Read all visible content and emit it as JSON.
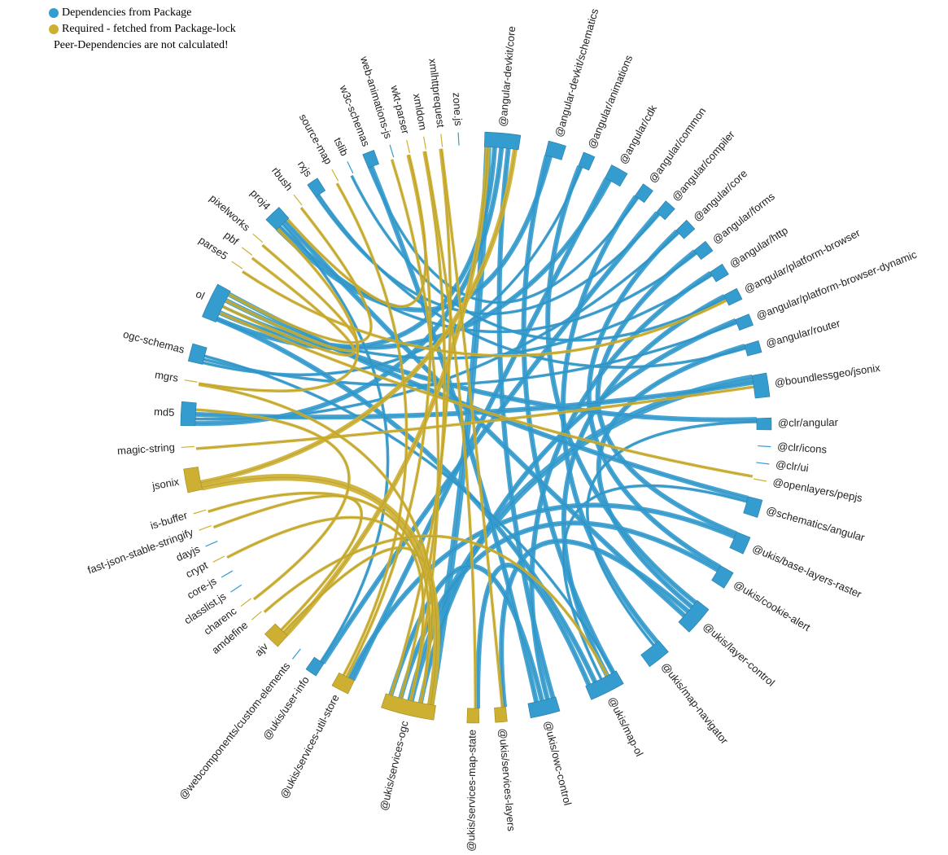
{
  "legend": {
    "items": [
      {
        "label": "Dependencies from Package",
        "color": "#349ccf"
      },
      {
        "label": "Required - fetched from Package-lock",
        "color": "#cdb032"
      }
    ],
    "note": "Peer-Dependencies are not calculated!"
  },
  "colors": {
    "dependency": "#349ccf",
    "required": "#cdb032",
    "dependency_stroke": "#2a7aa3",
    "required_stroke": "#a08a22"
  },
  "nodes": [
    {
      "name": "@angular-devkit/core",
      "kind": "dependency",
      "weight": 6
    },
    {
      "name": "@angular-devkit/schematics",
      "kind": "dependency",
      "weight": 3
    },
    {
      "name": "@angular/animations",
      "kind": "dependency",
      "weight": 2
    },
    {
      "name": "@angular/cdk",
      "kind": "dependency",
      "weight": 3
    },
    {
      "name": "@angular/common",
      "kind": "dependency",
      "weight": 2
    },
    {
      "name": "@angular/compiler",
      "kind": "dependency",
      "weight": 2
    },
    {
      "name": "@angular/core",
      "kind": "dependency",
      "weight": 2
    },
    {
      "name": "@angular/forms",
      "kind": "dependency",
      "weight": 2
    },
    {
      "name": "@angular/http",
      "kind": "dependency",
      "weight": 2
    },
    {
      "name": "@angular/platform-browser",
      "kind": "dependency",
      "weight": 2
    },
    {
      "name": "@angular/platform-browser-dynamic",
      "kind": "dependency",
      "weight": 2
    },
    {
      "name": "@angular/router",
      "kind": "dependency",
      "weight": 2
    },
    {
      "name": "@boundlessgeo/jsonix",
      "kind": "dependency",
      "weight": 4
    },
    {
      "name": "@clr/angular",
      "kind": "dependency",
      "weight": 2
    },
    {
      "name": "@clr/icons",
      "kind": "dependency",
      "weight": 1
    },
    {
      "name": "@clr/ui",
      "kind": "dependency",
      "weight": 1
    },
    {
      "name": "@openlayers/pepjs",
      "kind": "required",
      "weight": 1
    },
    {
      "name": "@schematics/angular",
      "kind": "dependency",
      "weight": 3
    },
    {
      "name": "@ukis/base-layers-raster",
      "kind": "dependency",
      "weight": 3
    },
    {
      "name": "@ukis/cookie-alert",
      "kind": "dependency",
      "weight": 3
    },
    {
      "name": "@ukis/layer-control",
      "kind": "dependency",
      "weight": 5
    },
    {
      "name": "@ukis/map-navigator",
      "kind": "dependency",
      "weight": 4
    },
    {
      "name": "@ukis/map-ol",
      "kind": "dependency",
      "weight": 6
    },
    {
      "name": "@ukis/owc-control",
      "kind": "dependency",
      "weight": 5
    },
    {
      "name": "@ukis/services-layers",
      "kind": "required",
      "weight": 2
    },
    {
      "name": "@ukis/services-map-state",
      "kind": "required",
      "weight": 2
    },
    {
      "name": "@ukis/services-ogc",
      "kind": "required",
      "weight": 9
    },
    {
      "name": "@ukis/services-util-store",
      "kind": "required",
      "weight": 3
    },
    {
      "name": "@ukis/user-info",
      "kind": "dependency",
      "weight": 2
    },
    {
      "name": "@webcomponents/custom-elements",
      "kind": "dependency",
      "weight": 1
    },
    {
      "name": "ajv",
      "kind": "required",
      "weight": 3
    },
    {
      "name": "amdefine",
      "kind": "required",
      "weight": 1
    },
    {
      "name": "charenc",
      "kind": "required",
      "weight": 1
    },
    {
      "name": "classlist.js",
      "kind": "dependency",
      "weight": 1
    },
    {
      "name": "core-js",
      "kind": "dependency",
      "weight": 1
    },
    {
      "name": "crypt",
      "kind": "required",
      "weight": 1
    },
    {
      "name": "dayjs",
      "kind": "dependency",
      "weight": 1
    },
    {
      "name": "fast-json-stable-stringify",
      "kind": "required",
      "weight": 1
    },
    {
      "name": "is-buffer",
      "kind": "required",
      "weight": 1
    },
    {
      "name": "jsonix",
      "kind": "required",
      "weight": 4
    },
    {
      "name": "magic-string",
      "kind": "required",
      "weight": 1
    },
    {
      "name": "md5",
      "kind": "dependency",
      "weight": 4
    },
    {
      "name": "mgrs",
      "kind": "required",
      "weight": 1
    },
    {
      "name": "ogc-schemas",
      "kind": "dependency",
      "weight": 3
    },
    {
      "name": "ol",
      "kind": "dependency",
      "weight": 6
    },
    {
      "name": "parse5",
      "kind": "required",
      "weight": 1
    },
    {
      "name": "pbf",
      "kind": "required",
      "weight": 1
    },
    {
      "name": "pixelworks",
      "kind": "required",
      "weight": 1
    },
    {
      "name": "proj4",
      "kind": "dependency",
      "weight": 3
    },
    {
      "name": "rbush",
      "kind": "required",
      "weight": 1
    },
    {
      "name": "rxjs",
      "kind": "dependency",
      "weight": 2
    },
    {
      "name": "source-map",
      "kind": "required",
      "weight": 1
    },
    {
      "name": "tslib",
      "kind": "dependency",
      "weight": 1
    },
    {
      "name": "w3c-schemas",
      "kind": "dependency",
      "weight": 2
    },
    {
      "name": "web-animations-js",
      "kind": "dependency",
      "weight": 1
    },
    {
      "name": "wkt-parser",
      "kind": "required",
      "weight": 1
    },
    {
      "name": "xmldom",
      "kind": "required",
      "weight": 1
    },
    {
      "name": "xmlhttprequest",
      "kind": "required",
      "weight": 1
    },
    {
      "name": "zone.js",
      "kind": "dependency",
      "weight": 1
    }
  ],
  "links": [
    {
      "source": "@angular-devkit/core",
      "target": "@ukis/services-ogc",
      "kind": "dependency",
      "value": 3
    },
    {
      "source": "@angular-devkit/core",
      "target": "ol",
      "kind": "dependency",
      "value": 2
    },
    {
      "source": "@angular-devkit/core",
      "target": "md5",
      "kind": "dependency",
      "value": 2
    },
    {
      "source": "@angular-devkit/core",
      "target": "@ukis/owc-control",
      "kind": "dependency",
      "value": 2
    },
    {
      "source": "@angular-devkit/schematics",
      "target": "@ukis/map-ol",
      "kind": "dependency",
      "value": 2
    },
    {
      "source": "@angular-devkit/schematics",
      "target": "proj4",
      "kind": "dependency",
      "value": 2
    },
    {
      "source": "@angular/animations",
      "target": "@ukis/layer-control",
      "kind": "dependency",
      "value": 2
    },
    {
      "source": "@angular/animations",
      "target": "ogc-schemas",
      "kind": "dependency",
      "value": 1
    },
    {
      "source": "@angular/cdk",
      "target": "@ukis/services-util-store",
      "kind": "dependency",
      "value": 2
    },
    {
      "source": "@angular/cdk",
      "target": "ol",
      "kind": "dependency",
      "value": 2
    },
    {
      "source": "@angular/common",
      "target": "@ukis/map-navigator",
      "kind": "dependency",
      "value": 2
    },
    {
      "source": "@angular/common",
      "target": "w3c-schemas",
      "kind": "dependency",
      "value": 1
    },
    {
      "source": "@angular/compiler",
      "target": "@ukis/user-info",
      "kind": "dependency",
      "value": 2
    },
    {
      "source": "@angular/compiler",
      "target": "rxjs",
      "kind": "dependency",
      "value": 1
    },
    {
      "source": "@angular/core",
      "target": "@ukis/cookie-alert",
      "kind": "dependency",
      "value": 2
    },
    {
      "source": "@angular/core",
      "target": "md5",
      "kind": "dependency",
      "value": 1
    },
    {
      "source": "@angular/forms",
      "target": "@ukis/base-layers-raster",
      "kind": "dependency",
      "value": 2
    },
    {
      "source": "@angular/forms",
      "target": "proj4",
      "kind": "dependency",
      "value": 1
    },
    {
      "source": "@angular/http",
      "target": "@ukis/owc-control",
      "kind": "dependency",
      "value": 2
    },
    {
      "source": "@angular/http",
      "target": "ol",
      "kind": "dependency",
      "value": 1
    },
    {
      "source": "@angular/platform-browser",
      "target": "@ukis/map-ol",
      "kind": "dependency",
      "value": 2
    },
    {
      "source": "@angular/platform-browser",
      "target": "tslib",
      "kind": "dependency",
      "value": 1
    },
    {
      "source": "@angular/platform-browser-dynamic",
      "target": "@ukis/services-ogc",
      "kind": "dependency",
      "value": 2
    },
    {
      "source": "@angular/platform-browser-dynamic",
      "target": "ogc-schemas",
      "kind": "dependency",
      "value": 1
    },
    {
      "source": "@angular/router",
      "target": "@ukis/layer-control",
      "kind": "dependency",
      "value": 2
    },
    {
      "source": "@angular/router",
      "target": "rxjs",
      "kind": "dependency",
      "value": 1
    },
    {
      "source": "@boundlessgeo/jsonix",
      "target": "@ukis/services-ogc",
      "kind": "dependency",
      "value": 3
    },
    {
      "source": "@boundlessgeo/jsonix",
      "target": "md5",
      "kind": "dependency",
      "value": 2
    },
    {
      "source": "@clr/angular",
      "target": "ol",
      "kind": "dependency",
      "value": 2
    },
    {
      "source": "@clr/angular",
      "target": "@ukis/map-navigator",
      "kind": "dependency",
      "value": 1
    },
    {
      "source": "@schematics/angular",
      "target": "ol",
      "kind": "dependency",
      "value": 2
    },
    {
      "source": "@schematics/angular",
      "target": "@ukis/map-ol",
      "kind": "dependency",
      "value": 1
    },
    {
      "source": "@ukis/base-layers-raster",
      "target": "@ukis/services-util-store",
      "kind": "dependency",
      "value": 2
    },
    {
      "source": "@ukis/cookie-alert",
      "target": "@ukis/services-ogc",
      "kind": "dependency",
      "value": 2
    },
    {
      "source": "@ukis/layer-control",
      "target": "@ukis/services-layers",
      "kind": "dependency",
      "value": 2
    },
    {
      "source": "@ukis/map-ol",
      "target": "ol",
      "kind": "dependency",
      "value": 2
    },
    {
      "source": "@ukis/map-ol",
      "target": "@ukis/services-map-state",
      "kind": "dependency",
      "value": 2
    },
    {
      "source": "@ukis/owc-control",
      "target": "@ukis/services-ogc",
      "kind": "dependency",
      "value": 2
    },
    {
      "source": "@ukis/user-info",
      "target": "proj4",
      "kind": "dependency",
      "value": 1
    },
    {
      "source": "w3c-schemas",
      "target": "@ukis/owc-control",
      "kind": "dependency",
      "value": 2
    },
    {
      "source": "proj4",
      "target": "@ukis/layer-control",
      "kind": "dependency",
      "value": 2
    },
    {
      "source": "ogc-schemas",
      "target": "@ukis/map-ol",
      "kind": "dependency",
      "value": 1
    },
    {
      "source": "jsonix",
      "target": "@ukis/services-ogc",
      "kind": "required",
      "value": 3
    },
    {
      "source": "jsonix",
      "target": "@angular-devkit/core",
      "kind": "required",
      "value": 2
    },
    {
      "source": "ajv",
      "target": "@angular-devkit/core",
      "kind": "required",
      "value": 2
    },
    {
      "source": "ajv",
      "target": "@ukis/services-ogc",
      "kind": "required",
      "value": 1
    },
    {
      "source": "@ukis/services-ogc",
      "target": "web-animations-js",
      "kind": "required",
      "value": 1
    },
    {
      "source": "@ukis/services-ogc",
      "target": "xmldom",
      "kind": "required",
      "value": 1
    },
    {
      "source": "@ukis/services-ogc",
      "target": "xmlhttprequest",
      "kind": "required",
      "value": 1
    },
    {
      "source": "@ukis/services-util-store",
      "target": "wkt-parser",
      "kind": "required",
      "value": 1
    },
    {
      "source": "@ukis/services-util-store",
      "target": "source-map",
      "kind": "required",
      "value": 1
    },
    {
      "source": "@ukis/services-map-state",
      "target": "xmldom",
      "kind": "required",
      "value": 1
    },
    {
      "source": "@ukis/services-layers",
      "target": "xmlhttprequest",
      "kind": "required",
      "value": 1
    },
    {
      "source": "@openlayers/pepjs",
      "target": "ol",
      "kind": "required",
      "value": 1
    },
    {
      "source": "magic-string",
      "target": "@boundlessgeo/jsonix",
      "kind": "required",
      "value": 1
    },
    {
      "source": "mgrs",
      "target": "@ukis/services-ogc",
      "kind": "required",
      "value": 1
    },
    {
      "source": "amdefine",
      "target": "@ukis/map-ol",
      "kind": "required",
      "value": 1
    },
    {
      "source": "charenc",
      "target": "md5",
      "kind": "required",
      "value": 1
    },
    {
      "source": "is-buffer",
      "target": "@ukis/services-ogc",
      "kind": "required",
      "value": 1
    },
    {
      "source": "crypt",
      "target": "@ukis/services-ogc",
      "kind": "required",
      "value": 1
    },
    {
      "source": "fast-json-stable-stringify",
      "target": "ajv",
      "kind": "required",
      "value": 1
    },
    {
      "source": "parse5",
      "target": "@angular/platform-browser",
      "kind": "required",
      "value": 1
    },
    {
      "source": "pbf",
      "target": "ol",
      "kind": "required",
      "value": 1
    },
    {
      "source": "pixelworks",
      "target": "ol",
      "kind": "required",
      "value": 1
    },
    {
      "source": "rbush",
      "target": "ol",
      "kind": "required",
      "value": 1
    },
    {
      "source": "proj4",
      "target": "wkt-parser",
      "kind": "required",
      "value": 1
    },
    {
      "source": "proj4",
      "target": "mgrs",
      "kind": "required",
      "value": 1
    }
  ]
}
